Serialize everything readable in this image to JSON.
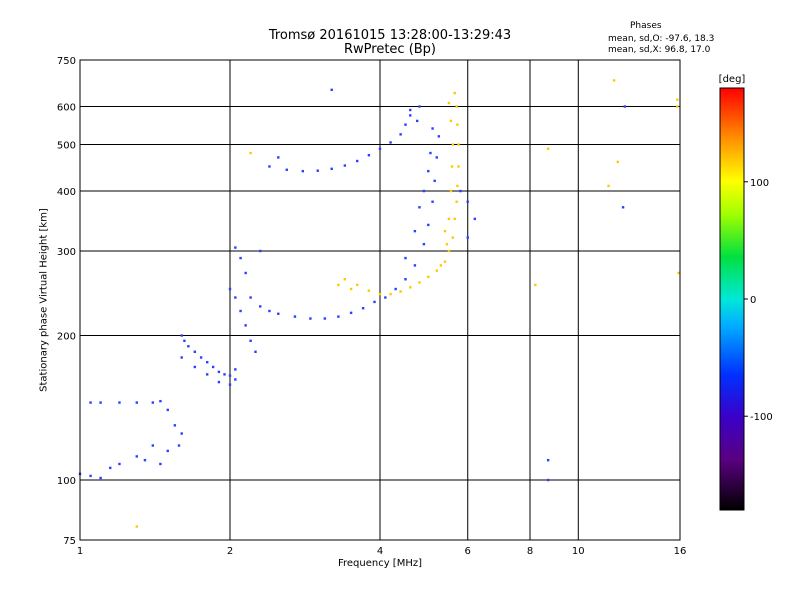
{
  "chart_data": {
    "type": "scatter",
    "title": "Tromsø 20161015 13:28:00-13:29:43",
    "subtitle": "RwPretec (Bp)",
    "xlabel": "Frequency [MHz]",
    "ylabel": "Stationary phase Virtual Height [km]",
    "xscale": "log",
    "yscale": "log",
    "xlim": [
      1,
      16
    ],
    "ylim": [
      75,
      750
    ],
    "xticks": [
      1,
      2,
      4,
      6,
      8,
      10,
      16
    ],
    "yticks": [
      75,
      100,
      200,
      300,
      400,
      500,
      600,
      750
    ],
    "grid": true,
    "legend": {
      "title": "Phases",
      "o_stats": "mean, sd,O: -97.6, 18.3",
      "x_stats": "mean, sd,X:  96.8, 17.0"
    },
    "colorbar": {
      "label": "[deg]",
      "range": [
        -180,
        180
      ],
      "ticks": [
        100,
        0,
        -100
      ],
      "colormap": "rainbow"
    },
    "series": [
      {
        "name": "O",
        "mean_phase": -97.6,
        "points": [
          [
            1.0,
            103
          ],
          [
            1.05,
            102
          ],
          [
            1.1,
            101
          ],
          [
            1.15,
            106
          ],
          [
            1.2,
            108
          ],
          [
            1.3,
            112
          ],
          [
            1.4,
            118
          ],
          [
            1.5,
            115
          ],
          [
            1.45,
            108
          ],
          [
            1.35,
            110
          ],
          [
            1.05,
            145
          ],
          [
            1.1,
            145
          ],
          [
            1.2,
            145
          ],
          [
            1.3,
            145
          ],
          [
            1.4,
            145
          ],
          [
            1.45,
            146
          ],
          [
            1.5,
            140
          ],
          [
            1.55,
            130
          ],
          [
            1.6,
            125
          ],
          [
            1.58,
            118
          ],
          [
            1.6,
            200
          ],
          [
            1.62,
            195
          ],
          [
            1.65,
            190
          ],
          [
            1.7,
            185
          ],
          [
            1.75,
            180
          ],
          [
            1.8,
            176
          ],
          [
            1.85,
            172
          ],
          [
            1.9,
            168
          ],
          [
            1.95,
            166
          ],
          [
            2.0,
            165
          ],
          [
            2.05,
            170
          ],
          [
            1.6,
            180
          ],
          [
            1.7,
            172
          ],
          [
            1.8,
            166
          ],
          [
            1.9,
            160
          ],
          [
            2.0,
            158
          ],
          [
            2.05,
            162
          ],
          [
            2.0,
            250
          ],
          [
            2.05,
            240
          ],
          [
            2.1,
            225
          ],
          [
            2.15,
            210
          ],
          [
            2.2,
            195
          ],
          [
            2.25,
            185
          ],
          [
            2.1,
            290
          ],
          [
            2.15,
            270
          ],
          [
            2.05,
            305
          ],
          [
            2.3,
            230
          ],
          [
            2.4,
            225
          ],
          [
            2.5,
            222
          ],
          [
            2.7,
            219
          ],
          [
            2.9,
            217
          ],
          [
            3.1,
            217
          ],
          [
            3.3,
            219
          ],
          [
            3.5,
            223
          ],
          [
            3.7,
            228
          ],
          [
            3.9,
            235
          ],
          [
            4.1,
            240
          ],
          [
            4.3,
            250
          ],
          [
            4.5,
            262
          ],
          [
            4.7,
            280
          ],
          [
            4.9,
            310
          ],
          [
            5.0,
            340
          ],
          [
            5.1,
            380
          ],
          [
            5.15,
            420
          ],
          [
            5.2,
            470
          ],
          [
            5.25,
            520
          ],
          [
            4.5,
            290
          ],
          [
            4.7,
            330
          ],
          [
            4.8,
            370
          ],
          [
            4.9,
            400
          ],
          [
            5.0,
            440
          ],
          [
            5.05,
            480
          ],
          [
            5.1,
            540
          ],
          [
            4.75,
            560
          ],
          [
            4.8,
            600
          ],
          [
            4.6,
            590
          ],
          [
            2.4,
            450
          ],
          [
            2.6,
            443
          ],
          [
            2.8,
            440
          ],
          [
            3.0,
            441
          ],
          [
            3.2,
            445
          ],
          [
            3.4,
            452
          ],
          [
            3.6,
            462
          ],
          [
            3.8,
            475
          ],
          [
            4.0,
            490
          ],
          [
            4.2,
            505
          ],
          [
            4.4,
            525
          ],
          [
            4.5,
            550
          ],
          [
            4.6,
            575
          ],
          [
            2.5,
            470
          ],
          [
            2.3,
            300
          ],
          [
            2.2,
            240
          ],
          [
            3.2,
            650
          ],
          [
            5.8,
            400
          ],
          [
            6.0,
            380
          ],
          [
            6.2,
            350
          ],
          [
            6.0,
            320
          ],
          [
            8.7,
            100
          ],
          [
            8.7,
            110
          ],
          [
            12.4,
            600
          ],
          [
            12.3,
            370
          ]
        ]
      },
      {
        "name": "X",
        "mean_phase": 96.8,
        "points": [
          [
            3.4,
            262
          ],
          [
            3.6,
            255
          ],
          [
            3.8,
            248
          ],
          [
            4.0,
            244
          ],
          [
            4.2,
            244
          ],
          [
            4.4,
            247
          ],
          [
            4.6,
            252
          ],
          [
            4.8,
            258
          ],
          [
            5.0,
            265
          ],
          [
            5.2,
            273
          ],
          [
            5.4,
            285
          ],
          [
            5.5,
            300
          ],
          [
            5.6,
            320
          ],
          [
            5.65,
            350
          ],
          [
            5.7,
            380
          ],
          [
            5.72,
            410
          ],
          [
            5.75,
            450
          ],
          [
            5.75,
            500
          ],
          [
            5.72,
            550
          ],
          [
            5.7,
            600
          ],
          [
            5.65,
            640
          ],
          [
            5.3,
            280
          ],
          [
            5.45,
            310
          ],
          [
            5.5,
            350
          ],
          [
            5.55,
            400
          ],
          [
            5.58,
            450
          ],
          [
            5.6,
            500
          ],
          [
            5.55,
            560
          ],
          [
            5.5,
            610
          ],
          [
            5.4,
            330
          ],
          [
            3.3,
            255
          ],
          [
            3.5,
            250
          ],
          [
            2.2,
            480
          ],
          [
            1.3,
            80
          ],
          [
            8.2,
            255
          ],
          [
            8.7,
            490
          ],
          [
            11.5,
            410
          ],
          [
            12.0,
            460
          ],
          [
            11.8,
            680
          ],
          [
            15.8,
            600
          ],
          [
            15.8,
            620
          ],
          [
            15.9,
            270
          ]
        ]
      }
    ]
  }
}
